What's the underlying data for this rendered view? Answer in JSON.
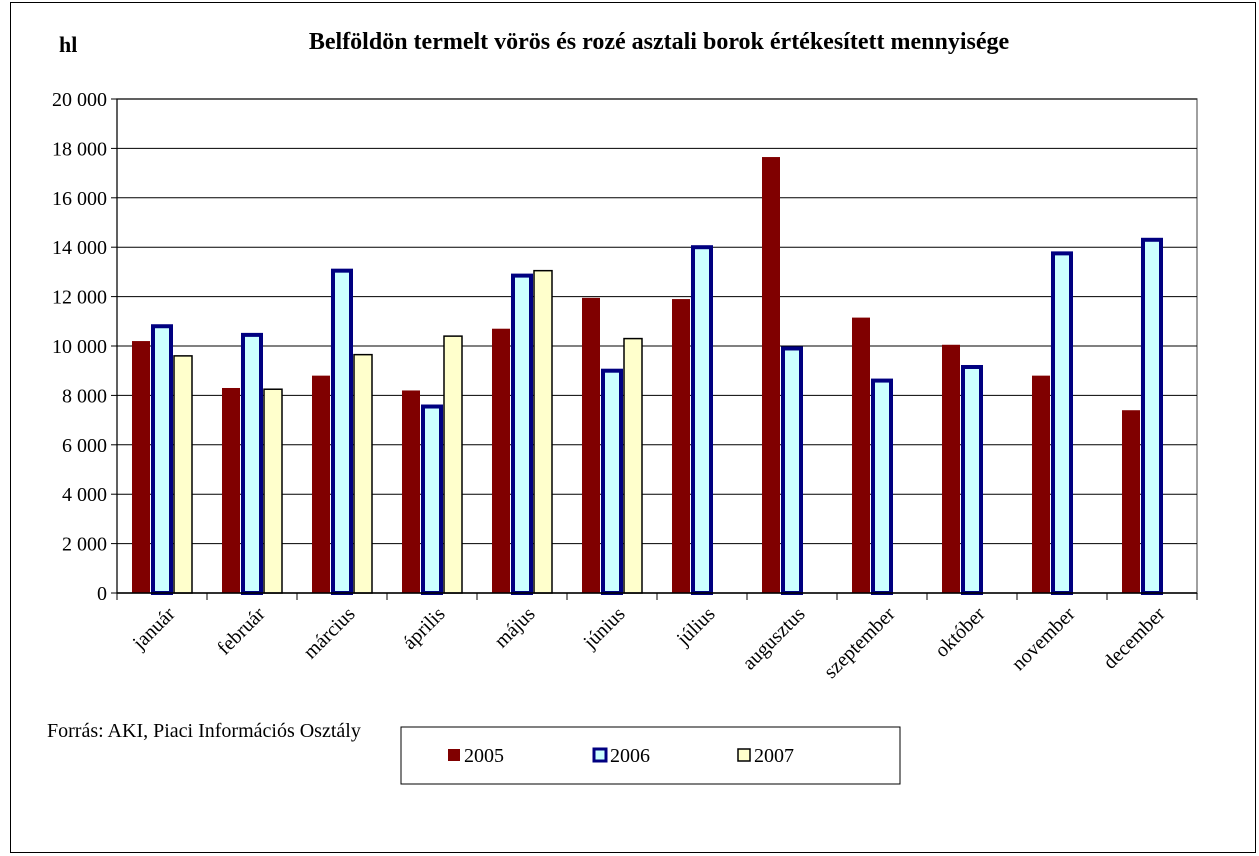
{
  "chart_data": {
    "type": "bar",
    "title": "Belföldön termelt vörös és rozé asztali borok értékesített mennyisége",
    "unit_label": "hl",
    "source": "Forrás: AKI, Piaci Információs Osztály",
    "ylim": [
      0,
      20000
    ],
    "ytick_values": [
      0,
      2000,
      4000,
      6000,
      8000,
      10000,
      12000,
      14000,
      16000,
      18000,
      20000
    ],
    "ytick_labels": [
      "0",
      "2 000",
      "4 000",
      "6 000",
      "8 000",
      "10 000",
      "12 000",
      "14 000",
      "16 000",
      "18 000",
      "20 000"
    ],
    "grid": true,
    "legend_position": "bottom",
    "categories": [
      "január",
      "február",
      "március",
      "április",
      "május",
      "június",
      "július",
      "augusztus",
      "szeptember",
      "október",
      "november",
      "december"
    ],
    "series": [
      {
        "name": "2005",
        "color": "#800000",
        "stroke": "#800000",
        "values": [
          10200,
          8300,
          8800,
          8200,
          10700,
          11950,
          11900,
          17650,
          11150,
          10050,
          8800,
          7400
        ]
      },
      {
        "name": "2006",
        "color": "#CCFFFF",
        "stroke": "#000080",
        "values": [
          10800,
          10450,
          13050,
          7550,
          12850,
          9000,
          14000,
          9900,
          8600,
          9150,
          13750,
          14300
        ]
      },
      {
        "name": "2007",
        "color": "#FFFFCC",
        "stroke": "#000000",
        "values": [
          9600,
          8250,
          9650,
          10400,
          13050,
          10300,
          null,
          null,
          null,
          null,
          null,
          null
        ]
      }
    ]
  }
}
